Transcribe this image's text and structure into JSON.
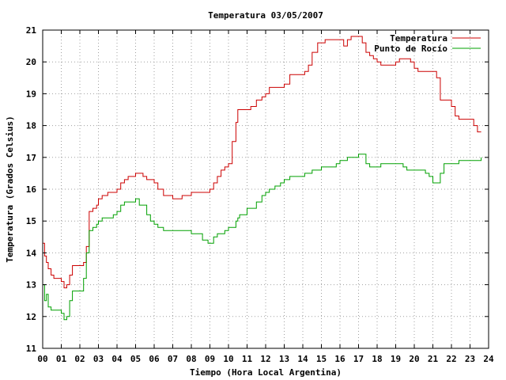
{
  "chart_data": {
    "type": "line",
    "title": "Temperatura 03/05/2007",
    "xlabel": "Tiempo (Hora Local Argentina)",
    "ylabel": "Temperatura (Grados Celsius)",
    "xlim": [
      0,
      24
    ],
    "ylim": [
      11,
      21
    ],
    "xticks": [
      "00",
      "01",
      "02",
      "03",
      "04",
      "05",
      "06",
      "07",
      "08",
      "09",
      "10",
      "11",
      "12",
      "13",
      "14",
      "15",
      "16",
      "17",
      "18",
      "19",
      "20",
      "21",
      "22",
      "23",
      "24"
    ],
    "yticks": [
      11,
      12,
      13,
      14,
      15,
      16,
      17,
      18,
      19,
      20,
      21
    ],
    "grid": true,
    "legend_position": "top-right",
    "series": [
      {
        "name": "Temperatura",
        "color": "#cc0000",
        "x": [
          0,
          0.1,
          0.2,
          0.3,
          0.45,
          0.6,
          0.8,
          1.0,
          1.15,
          1.3,
          1.45,
          1.6,
          1.8,
          2.0,
          2.2,
          2.35,
          2.5,
          2.7,
          2.9,
          3.0,
          3.2,
          3.5,
          3.8,
          4.0,
          4.2,
          4.4,
          4.6,
          4.8,
          5.0,
          5.2,
          5.4,
          5.6,
          5.8,
          6.0,
          6.2,
          6.5,
          6.8,
          7.0,
          7.2,
          7.5,
          7.8,
          8.0,
          8.3,
          8.6,
          8.9,
          9.0,
          9.2,
          9.4,
          9.6,
          9.8,
          10.0,
          10.2,
          10.4,
          10.5,
          10.6,
          10.8,
          11.0,
          11.2,
          11.5,
          11.8,
          12.0,
          12.2,
          12.5,
          12.8,
          13.0,
          13.3,
          13.6,
          13.9,
          14.1,
          14.3,
          14.5,
          14.8,
          15.0,
          15.2,
          15.5,
          15.8,
          16.0,
          16.2,
          16.4,
          16.6,
          16.8,
          17.0,
          17.2,
          17.4,
          17.6,
          17.8,
          18.0,
          18.2,
          18.4,
          18.6,
          18.8,
          19.0,
          19.2,
          19.4,
          19.6,
          19.8,
          20.0,
          20.2,
          20.4,
          20.6,
          20.8,
          21.0,
          21.2,
          21.4,
          21.6,
          21.8,
          22.0,
          22.2,
          22.4,
          22.6,
          22.8,
          23.0,
          23.2,
          23.4,
          23.6
        ],
        "values": [
          14.3,
          13.9,
          13.7,
          13.5,
          13.3,
          13.2,
          13.2,
          13.1,
          12.9,
          13.0,
          13.3,
          13.6,
          13.6,
          13.6,
          13.7,
          14.2,
          15.3,
          15.4,
          15.5,
          15.7,
          15.8,
          15.9,
          15.9,
          16.0,
          16.2,
          16.3,
          16.4,
          16.4,
          16.5,
          16.5,
          16.4,
          16.3,
          16.3,
          16.2,
          16.0,
          15.8,
          15.8,
          15.7,
          15.7,
          15.8,
          15.8,
          15.9,
          15.9,
          15.9,
          15.9,
          16.0,
          16.2,
          16.4,
          16.6,
          16.7,
          16.8,
          17.5,
          18.1,
          18.5,
          18.5,
          18.5,
          18.5,
          18.6,
          18.8,
          18.9,
          19.0,
          19.2,
          19.2,
          19.2,
          19.3,
          19.6,
          19.6,
          19.6,
          19.7,
          19.9,
          20.3,
          20.6,
          20.6,
          20.7,
          20.7,
          20.7,
          20.7,
          20.5,
          20.7,
          20.8,
          20.8,
          20.8,
          20.6,
          20.3,
          20.2,
          20.1,
          20.0,
          19.9,
          19.9,
          19.9,
          19.9,
          20.0,
          20.1,
          20.1,
          20.1,
          20.0,
          19.8,
          19.7,
          19.7,
          19.7,
          19.7,
          19.7,
          19.5,
          18.8,
          18.8,
          18.8,
          18.6,
          18.3,
          18.2,
          18.2,
          18.2,
          18.2,
          18.0,
          17.8,
          17.8
        ]
      },
      {
        "name": "Punto de Rocío",
        "color": "#00a000",
        "x": [
          0,
          0.1,
          0.2,
          0.3,
          0.45,
          0.6,
          0.8,
          1.0,
          1.15,
          1.3,
          1.45,
          1.6,
          1.8,
          2.0,
          2.2,
          2.35,
          2.5,
          2.7,
          2.9,
          3.0,
          3.2,
          3.5,
          3.8,
          4.0,
          4.2,
          4.4,
          4.6,
          4.8,
          5.0,
          5.2,
          5.4,
          5.6,
          5.8,
          6.0,
          6.2,
          6.5,
          6.8,
          7.0,
          7.2,
          7.5,
          7.8,
          8.0,
          8.3,
          8.6,
          8.9,
          9.0,
          9.2,
          9.4,
          9.6,
          9.8,
          10.0,
          10.2,
          10.4,
          10.5,
          10.6,
          10.8,
          11.0,
          11.2,
          11.5,
          11.8,
          12.0,
          12.2,
          12.5,
          12.8,
          13.0,
          13.3,
          13.6,
          13.9,
          14.1,
          14.3,
          14.5,
          14.8,
          15.0,
          15.2,
          15.5,
          15.8,
          16.0,
          16.2,
          16.4,
          16.6,
          16.8,
          17.0,
          17.2,
          17.4,
          17.6,
          17.8,
          18.0,
          18.2,
          18.4,
          18.6,
          18.8,
          19.0,
          19.2,
          19.4,
          19.6,
          19.8,
          20.0,
          20.2,
          20.4,
          20.6,
          20.8,
          21.0,
          21.2,
          21.4,
          21.6,
          21.8,
          22.0,
          22.2,
          22.4,
          22.6,
          22.8,
          23.0,
          23.2,
          23.4,
          23.6
        ],
        "values": [
          13.0,
          12.5,
          12.7,
          12.3,
          12.2,
          12.2,
          12.2,
          12.1,
          11.9,
          12.0,
          12.5,
          12.8,
          12.8,
          12.8,
          13.2,
          14.0,
          14.7,
          14.8,
          14.9,
          15.0,
          15.1,
          15.1,
          15.2,
          15.3,
          15.5,
          15.6,
          15.6,
          15.6,
          15.7,
          15.5,
          15.5,
          15.2,
          15.0,
          14.9,
          14.8,
          14.7,
          14.7,
          14.7,
          14.7,
          14.7,
          14.7,
          14.6,
          14.6,
          14.4,
          14.3,
          14.3,
          14.5,
          14.6,
          14.6,
          14.7,
          14.8,
          14.8,
          15.0,
          15.1,
          15.2,
          15.2,
          15.4,
          15.4,
          15.6,
          15.8,
          15.9,
          16.0,
          16.1,
          16.2,
          16.3,
          16.4,
          16.4,
          16.4,
          16.5,
          16.5,
          16.6,
          16.6,
          16.7,
          16.7,
          16.7,
          16.8,
          16.9,
          16.9,
          17.0,
          17.0,
          17.0,
          17.1,
          17.1,
          16.8,
          16.7,
          16.7,
          16.7,
          16.8,
          16.8,
          16.8,
          16.8,
          16.8,
          16.8,
          16.7,
          16.6,
          16.6,
          16.6,
          16.6,
          16.6,
          16.5,
          16.4,
          16.2,
          16.2,
          16.5,
          16.8,
          16.8,
          16.8,
          16.8,
          16.9,
          16.9,
          16.9,
          16.9,
          16.9,
          16.9,
          17.0
        ]
      }
    ]
  }
}
